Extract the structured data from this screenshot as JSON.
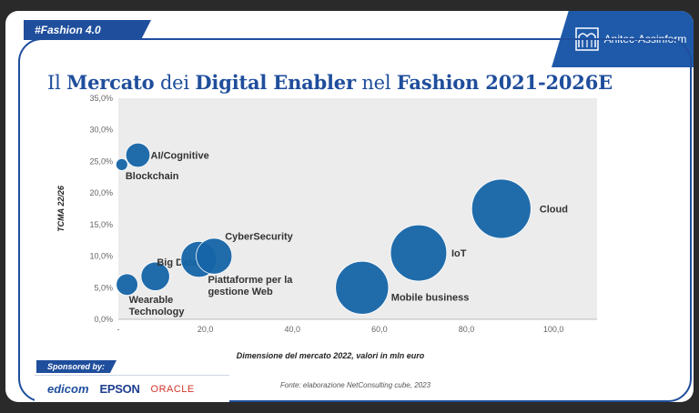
{
  "slide": {
    "hashtag": "#Fashion 4.0",
    "logo_text": "Anitec-Assinform",
    "title_parts": [
      {
        "text": "Il ",
        "bold": false
      },
      {
        "text": "Mercato",
        "bold": true
      },
      {
        "text": " dei ",
        "bold": false
      },
      {
        "text": "Digital Enabler",
        "bold": true
      },
      {
        "text": " nel ",
        "bold": false
      },
      {
        "text": "Fashion 2021-2026E",
        "bold": true
      }
    ],
    "source": "Fonte: elaborazione NetConsulting cube, 2023",
    "sponsor_label": "Sponsored by:",
    "sponsors": [
      "edicom",
      "EPSON",
      "ORACLE"
    ]
  },
  "colors": {
    "accent": "#1f4e9c",
    "bubble": "#1565a8",
    "plot_bg": "#ececec"
  },
  "chart_data": {
    "type": "scatter",
    "title": "",
    "xlabel": "Dimensione del mercato 2022, valori in mln euro",
    "ylabel": "TCMA 22/26",
    "xlim": [
      0,
      110
    ],
    "ylim": [
      0,
      35
    ],
    "xticks": [
      20,
      40,
      60,
      80,
      100
    ],
    "xtick_labels": [
      "20,0",
      "40,0",
      "60,0",
      "80,0",
      "100,0"
    ],
    "yticks": [
      0,
      5,
      10,
      15,
      20,
      25,
      30,
      35
    ],
    "ytick_labels": [
      "0,0%",
      "5,0%",
      "10,0%",
      "15,0%",
      "20,0%",
      "25,0%",
      "30,0%",
      "35,0%"
    ],
    "grid": false,
    "points": [
      {
        "label": "AI/Cognitive",
        "x": 4.5,
        "y": 26.0,
        "size": 2.5
      },
      {
        "label": "Blockchain",
        "x": 0.8,
        "y": 24.5,
        "size": 0.6
      },
      {
        "label": "Wearable Technology",
        "x": 2.0,
        "y": 5.5,
        "size": 2.0
      },
      {
        "label": "Big Data",
        "x": 8.5,
        "y": 6.8,
        "size": 3.5
      },
      {
        "label": "Piattaforme per la gestione Web",
        "x": 18.5,
        "y": 9.5,
        "size": 5.5
      },
      {
        "label": "CyberSecurity",
        "x": 22.0,
        "y": 10.0,
        "size": 5.5
      },
      {
        "label": "Mobile business",
        "x": 56.0,
        "y": 5.0,
        "size": 12.0
      },
      {
        "label": "IoT",
        "x": 69.0,
        "y": 10.5,
        "size": 13.5
      },
      {
        "label": "Cloud",
        "x": 88.0,
        "y": 17.5,
        "size": 15.0
      }
    ]
  }
}
